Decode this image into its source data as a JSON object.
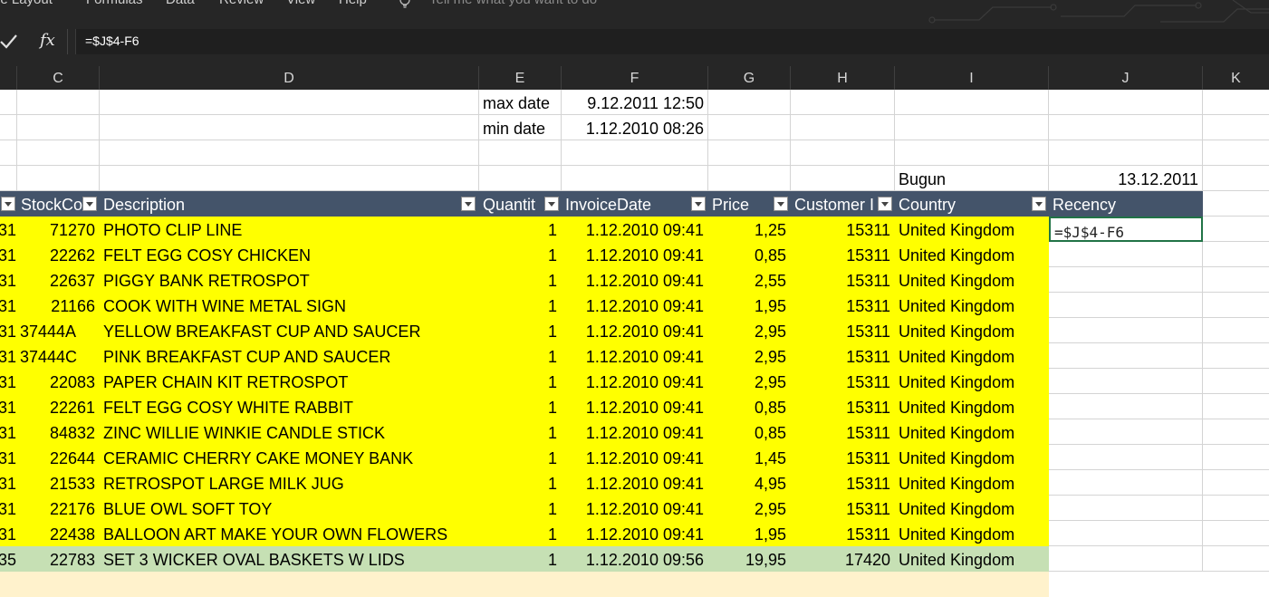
{
  "ribbon": {
    "tabs": [
      "ge Layout",
      "Formulas",
      "Data",
      "Review",
      "View",
      "Help"
    ],
    "tell_me": "Tell me what you want to do"
  },
  "formula_bar": {
    "fx_label": "fx",
    "formula": "=$J$4-F6"
  },
  "columns": [
    "C",
    "D",
    "E",
    "F",
    "G",
    "H",
    "I",
    "J",
    "K"
  ],
  "info": {
    "max_label": "max date",
    "max_value": "9.12.2011 12:50",
    "min_label": "min date",
    "min_value": "1.12.2010 08:26",
    "today_label": "Bugun",
    "today_value": "13.12.2011"
  },
  "table_headers": {
    "stock": "StockCo",
    "description": "Description",
    "quantity": "Quantit",
    "invoice_date": "InvoiceDate",
    "price": "Price",
    "customer": "Customer I",
    "country": "Country",
    "recency": "Recency"
  },
  "editing_cell": "=$J$4-F6",
  "rows": [
    {
      "a": "31",
      "stock": "71270",
      "desc": "PHOTO CLIP LINE",
      "qty": "1",
      "date": "1.12.2010 09:41",
      "price": "1,25",
      "cust": "15311",
      "country": "United Kingdom"
    },
    {
      "a": "31",
      "stock": "22262",
      "desc": "FELT EGG COSY CHICKEN",
      "qty": "1",
      "date": "1.12.2010 09:41",
      "price": "0,85",
      "cust": "15311",
      "country": "United Kingdom"
    },
    {
      "a": "31",
      "stock": "22637",
      "desc": "PIGGY BANK RETROSPOT",
      "qty": "1",
      "date": "1.12.2010 09:41",
      "price": "2,55",
      "cust": "15311",
      "country": "United Kingdom"
    },
    {
      "a": "31",
      "stock": "21166",
      "desc": "COOK WITH WINE METAL SIGN",
      "qty": "1",
      "date": "1.12.2010 09:41",
      "price": "1,95",
      "cust": "15311",
      "country": "United Kingdom"
    },
    {
      "a": "31",
      "stock": "37444A",
      "desc": "YELLOW BREAKFAST CUP AND SAUCER",
      "qty": "1",
      "date": "1.12.2010 09:41",
      "price": "2,95",
      "cust": "15311",
      "country": "United Kingdom"
    },
    {
      "a": "31",
      "stock": "37444C",
      "desc": "PINK BREAKFAST CUP AND SAUCER",
      "qty": "1",
      "date": "1.12.2010 09:41",
      "price": "2,95",
      "cust": "15311",
      "country": "United Kingdom"
    },
    {
      "a": "31",
      "stock": "22083",
      "desc": "PAPER CHAIN KIT RETROSPOT",
      "qty": "1",
      "date": "1.12.2010 09:41",
      "price": "2,95",
      "cust": "15311",
      "country": "United Kingdom"
    },
    {
      "a": "31",
      "stock": "22261",
      "desc": "FELT EGG COSY WHITE RABBIT",
      "qty": "1",
      "date": "1.12.2010 09:41",
      "price": "0,85",
      "cust": "15311",
      "country": "United Kingdom"
    },
    {
      "a": "31",
      "stock": "84832",
      "desc": "ZINC WILLIE WINKIE  CANDLE STICK",
      "qty": "1",
      "date": "1.12.2010 09:41",
      "price": "0,85",
      "cust": "15311",
      "country": "United Kingdom"
    },
    {
      "a": "31",
      "stock": "22644",
      "desc": "CERAMIC CHERRY CAKE MONEY BANK",
      "qty": "1",
      "date": "1.12.2010 09:41",
      "price": "1,45",
      "cust": "15311",
      "country": "United Kingdom"
    },
    {
      "a": "31",
      "stock": "21533",
      "desc": "RETROSPOT LARGE MILK JUG",
      "qty": "1",
      "date": "1.12.2010 09:41",
      "price": "4,95",
      "cust": "15311",
      "country": "United Kingdom"
    },
    {
      "a": "31",
      "stock": "22176",
      "desc": "BLUE OWL SOFT TOY",
      "qty": "1",
      "date": "1.12.2010 09:41",
      "price": "2,95",
      "cust": "15311",
      "country": "United Kingdom"
    },
    {
      "a": "31",
      "stock": "22438",
      "desc": "BALLOON ART MAKE YOUR OWN FLOWERS",
      "qty": "1",
      "date": "1.12.2010 09:41",
      "price": "1,95",
      "cust": "15311",
      "country": "United Kingdom"
    },
    {
      "a": "35",
      "stock": "22783",
      "desc": "SET 3 WICKER OVAL BASKETS W LIDS",
      "qty": "1",
      "date": "1.12.2010 09:56",
      "price": "19,95",
      "cust": "17420",
      "country": "United Kingdom"
    }
  ],
  "colors": {
    "yellow_fill": "#ffff00",
    "green_fill": "#c6e0b4",
    "cream_fill": "#fff2cc",
    "header_fill": "#44546a",
    "dark_ui": "#262626"
  }
}
